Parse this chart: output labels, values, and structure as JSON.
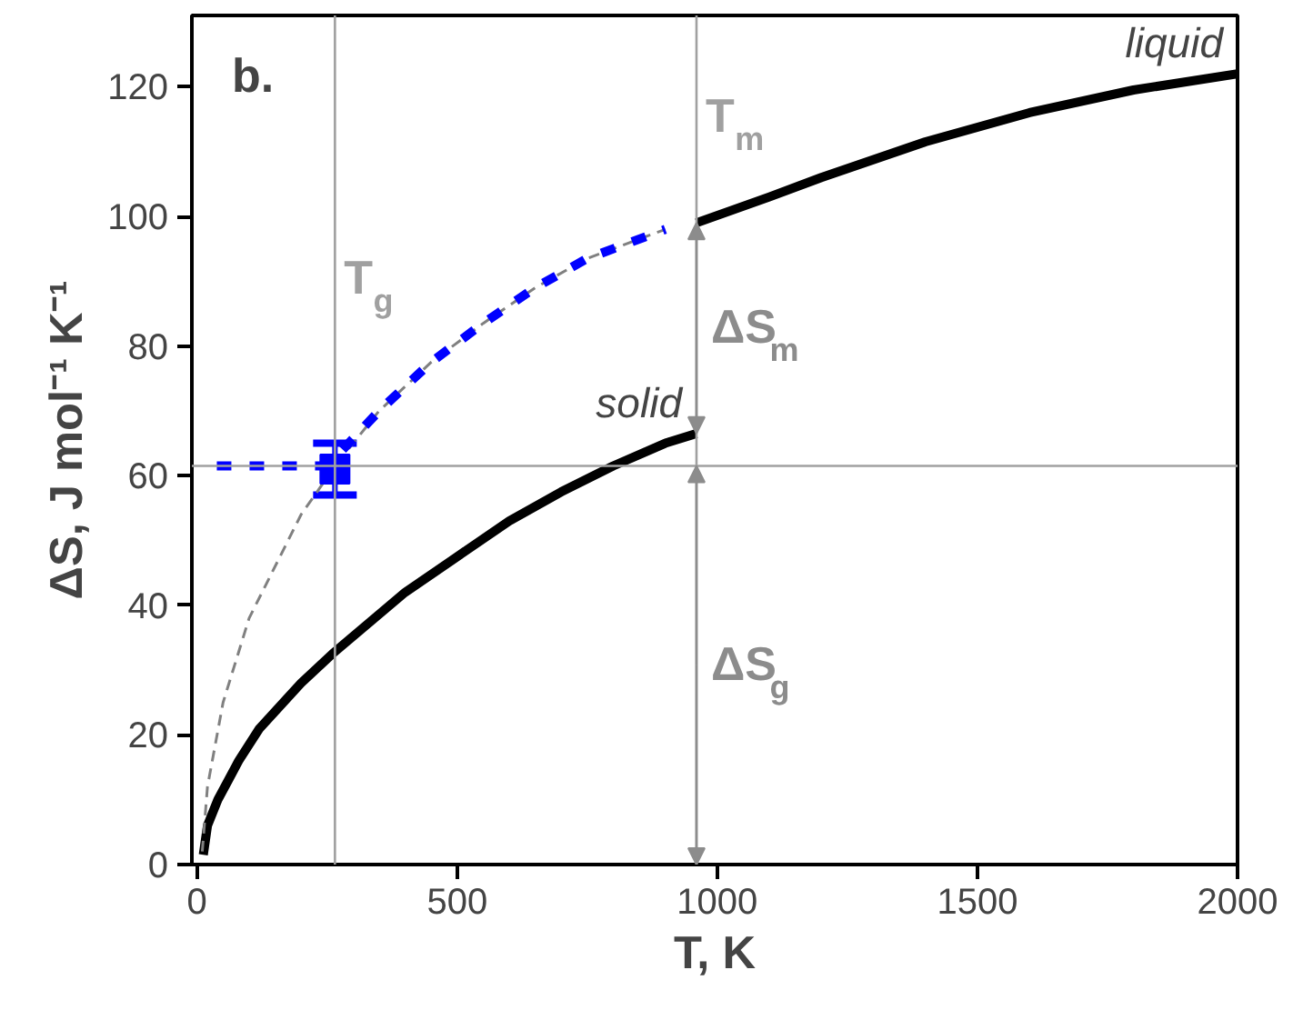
{
  "chart_data": {
    "type": "line",
    "title": "b.",
    "xlabel": "T, K",
    "ylabel": "ΔS, J mol⁻¹ K⁻¹",
    "xlim": [
      -10,
      2000
    ],
    "ylim": [
      0,
      131
    ],
    "xticks": [
      0,
      500,
      1000,
      1500,
      2000
    ],
    "yticks": [
      0,
      20,
      40,
      60,
      80,
      100,
      120
    ],
    "grid": false,
    "legend": false,
    "series": [
      {
        "name": "solid",
        "color": "#000000",
        "line_style": "solid",
        "x": [
          12,
          20,
          40,
          80,
          120,
          200,
          260,
          400,
          500,
          600,
          700,
          800,
          900,
          960
        ],
        "values": [
          1.5,
          6,
          10,
          16,
          21,
          28,
          32.5,
          42,
          47.5,
          53,
          57.5,
          61.5,
          65,
          66.5
        ]
      },
      {
        "name": "liquid",
        "color": "#000000",
        "line_style": "solid",
        "x": [
          960,
          1100,
          1200,
          1400,
          1600,
          1800,
          2000
        ],
        "values": [
          99,
          103,
          106,
          111.5,
          116,
          119.5,
          122
        ]
      },
      {
        "color": "#808080",
        "line_style": "dashed",
        "x": [
          10,
          20,
          50,
          100,
          200,
          270,
          350,
          450,
          550,
          650,
          750,
          900
        ],
        "values": [
          2,
          12,
          25,
          38,
          54,
          62,
          70,
          77.5,
          83.5,
          89,
          93.5,
          98
        ]
      },
      {
        "color": "#0000ff",
        "line_style": "dashed",
        "x": [
          280,
          350,
          450,
          550,
          650,
          750,
          900
        ],
        "values": [
          64,
          70,
          77.5,
          83.5,
          89,
          93.5,
          98
        ]
      },
      {
        "color": "#0000ff",
        "line_style": "dashed",
        "x": [
          38,
          265
        ],
        "values": [
          61.5,
          61.5
        ]
      },
      {
        "type": "scatter",
        "color": "#0000ff",
        "marker": "square",
        "x": [
          265
        ],
        "values": [
          61
        ],
        "errors": [
          4
        ]
      }
    ],
    "ref_lines": [
      {
        "axis": "x",
        "value": 265,
        "label": "T$_{g}$",
        "color": "#a0a0a0"
      },
      {
        "axis": "x",
        "value": 960,
        "label": "T$_{m}$",
        "color": "#a0a0a0"
      },
      {
        "axis": "y",
        "value": 61.5,
        "color": "#a0a0a0"
      }
    ],
    "annotations": [
      {
        "text": "ΔS$_{m}$",
        "x": 960,
        "y": 82.75
      },
      {
        "text": "ΔS$_{g}$",
        "x": 960,
        "y": 30.75
      }
    ]
  }
}
